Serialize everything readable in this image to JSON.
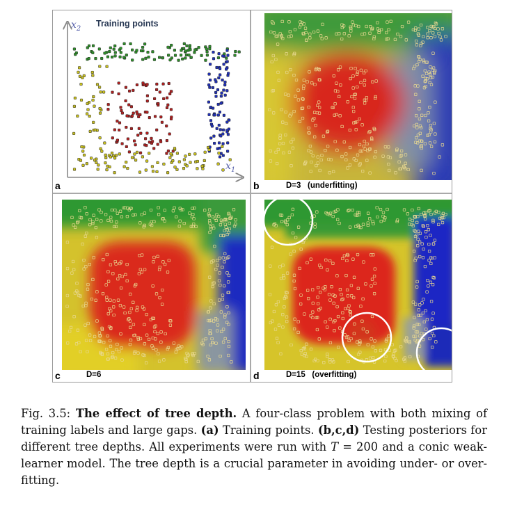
{
  "panel_a": {
    "label": "a",
    "title": "Training points",
    "y_axis_label": "x",
    "y_axis_sub": "2",
    "x_axis_label": "x",
    "x_axis_sub": "1"
  },
  "panel_b": {
    "label": "b",
    "note": "D=3   (underfitting)"
  },
  "panel_c": {
    "label": "c",
    "note": "D=6"
  },
  "panel_d": {
    "label": "d",
    "note": "D=15   (overfitting)"
  },
  "colors": {
    "class_green": "#2f8f2a",
    "class_red": "#b02020",
    "class_blue": "#2030b8",
    "class_yellow": "#c8c020",
    "circle": "#ffffff"
  },
  "caption": {
    "fig_label": "Fig. 3.5:",
    "bold_title": "The effect of tree depth.",
    "text1": "A four-class problem with both mixing of training labels and large gaps.",
    "bold_a": "(a)",
    "text2": "Training points.",
    "bold_bcd": "(b,c,d)",
    "text3": "Testing posteriors for different tree depths. All experiments were run with",
    "math_T": "T",
    "text4": "= 200 and a conic weak-learner model. The tree depth is a crucial parameter in avoiding under- or over-fitting."
  }
}
